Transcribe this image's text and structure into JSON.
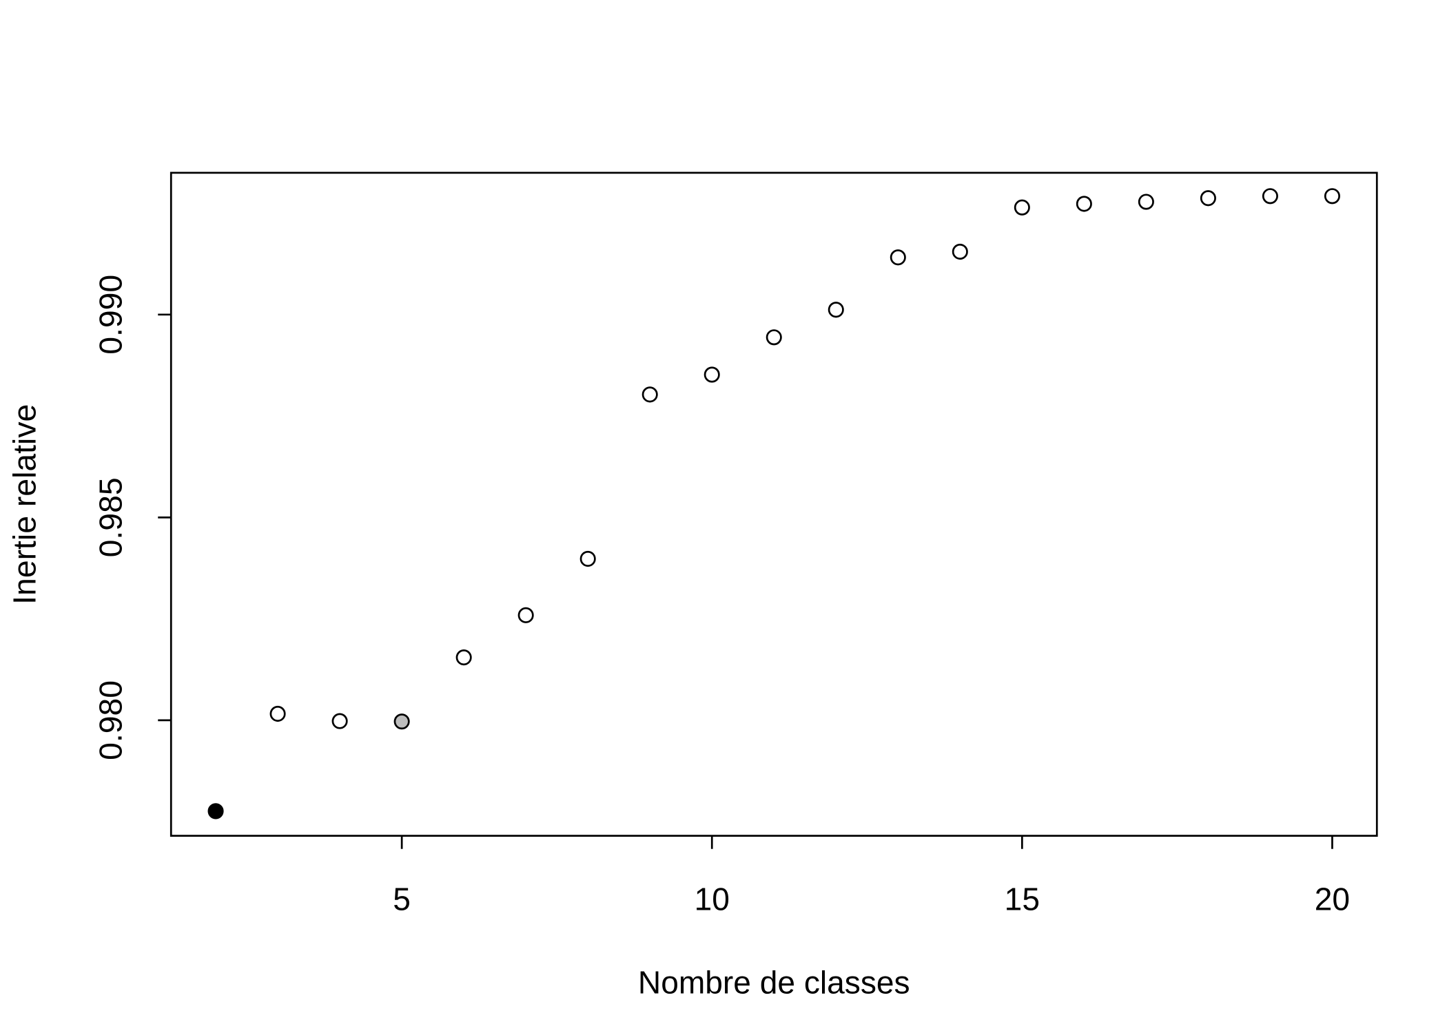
{
  "chart_data": {
    "type": "scatter",
    "x_label": "Nombre de classes",
    "y_label": "Inertie relative",
    "x": [
      2,
      3,
      4,
      5,
      6,
      7,
      8,
      9,
      10,
      11,
      12,
      13,
      14,
      15,
      16,
      17,
      18,
      19,
      20
    ],
    "values": [
      0.97776,
      0.98016,
      0.97998,
      0.97997,
      0.98155,
      0.98259,
      0.98398,
      0.98803,
      0.98852,
      0.98944,
      0.99012,
      0.99141,
      0.99155,
      0.99264,
      0.99273,
      0.99278,
      0.99287,
      0.99292,
      0.99292
    ],
    "colors": [
      "#000000",
      "#ffffff",
      "#ffffff",
      "#bebebe",
      "#ffffff",
      "#ffffff",
      "#ffffff",
      "#ffffff",
      "#ffffff",
      "#ffffff",
      "#ffffff",
      "#ffffff",
      "#ffffff",
      "#ffffff",
      "#ffffff",
      "#ffffff",
      "#ffffff",
      "#ffffff",
      "#ffffff"
    ],
    "xlim": [
      1.28,
      20.72
    ],
    "ylim": [
      0.977153,
      0.993495
    ],
    "xticks": [
      5,
      10,
      15,
      20
    ],
    "yticks": [
      {
        "value": 0.98,
        "label": "0.980"
      },
      {
        "value": 0.985,
        "label": "0.985"
      },
      {
        "value": 0.99,
        "label": "0.990"
      }
    ]
  }
}
